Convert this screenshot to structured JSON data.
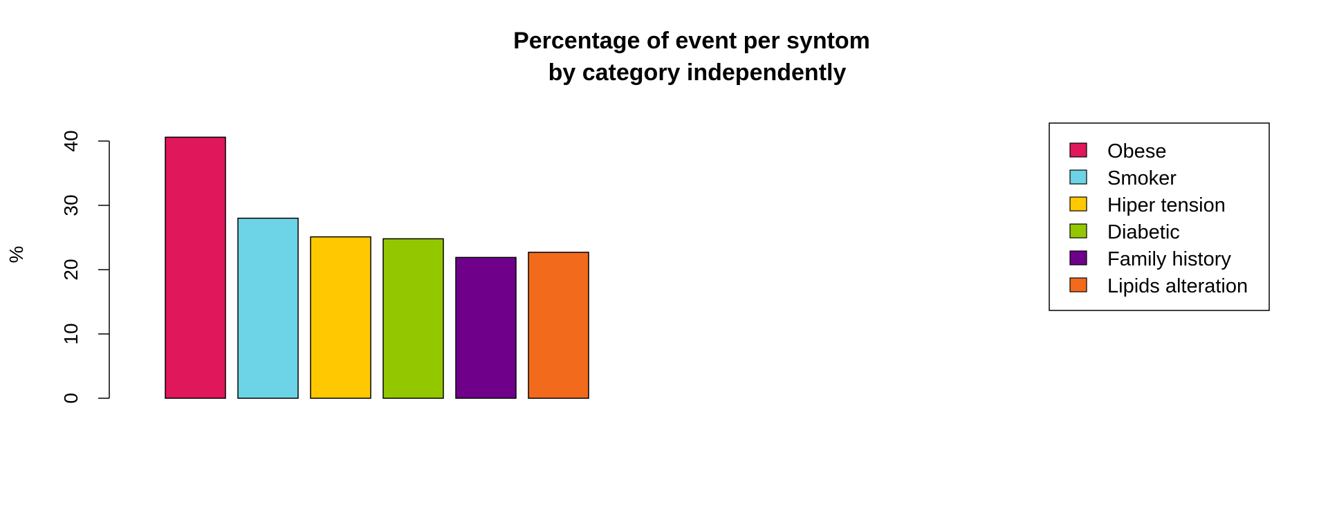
{
  "chart_data": {
    "type": "bar",
    "title_lines": [
      "Percentage of event per syntom",
      "by category independently"
    ],
    "xlabel": "",
    "ylabel": "%",
    "ylim": [
      0,
      40
    ],
    "yticks": [
      "0",
      "10",
      "20",
      "30",
      "40"
    ],
    "grid": false,
    "legend_position": "top-right",
    "categories": [
      "Obese",
      "Smoker",
      "Hiper tension",
      "Diabetic",
      "Family history",
      "Lipids alteration"
    ],
    "values": [
      40.6,
      28.0,
      25.1,
      24.8,
      21.9,
      22.7
    ],
    "colors": [
      "#E0175A",
      "#6DD3E6",
      "#FFC800",
      "#93C800",
      "#6F008A",
      "#F26A1B"
    ]
  }
}
